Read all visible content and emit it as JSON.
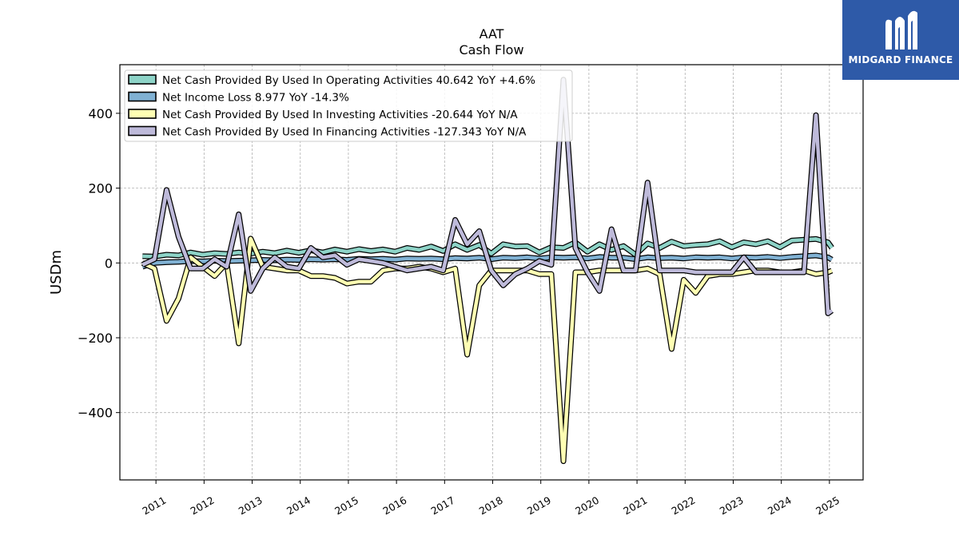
{
  "brand": {
    "name": "MIDGARD FINANCE",
    "logo_icon": "midgard-m-icon",
    "background": "#2e5aa8"
  },
  "chart_data": {
    "type": "line",
    "title": "AAT",
    "subtitle": "Cash Flow",
    "ylabel": "USDm",
    "xlabel": "",
    "ylim": [
      -580,
      530
    ],
    "xlim": [
      2010.25,
      2025.7
    ],
    "yticks": [
      400,
      200,
      0,
      -200,
      -400
    ],
    "ytick_labels": [
      "400",
      "200",
      "0",
      "−200",
      "−400"
    ],
    "xticks": [
      2011,
      2012,
      2013,
      2014,
      2015,
      2016,
      2017,
      2018,
      2019,
      2020,
      2021,
      2022,
      2023,
      2024,
      2025
    ],
    "xtick_labels": [
      "2011",
      "2012",
      "2013",
      "2014",
      "2015",
      "2016",
      "2017",
      "2018",
      "2019",
      "2020",
      "2021",
      "2022",
      "2023",
      "2024",
      "2025"
    ],
    "grid": true,
    "legend_position": "top-left",
    "series": [
      {
        "name": "Net Cash Provided By Used In Operating Activities  40.642 YoY +4.6%",
        "color": "#8dd3c7",
        "x": [
          2010.72,
          2010.97,
          2011.22,
          2011.47,
          2011.72,
          2011.97,
          2012.22,
          2012.47,
          2012.72,
          2012.97,
          2013.22,
          2013.47,
          2013.72,
          2013.97,
          2014.22,
          2014.47,
          2014.72,
          2014.97,
          2015.22,
          2015.47,
          2015.72,
          2015.97,
          2016.22,
          2016.47,
          2016.72,
          2016.97,
          2017.22,
          2017.47,
          2017.72,
          2017.97,
          2018.22,
          2018.47,
          2018.72,
          2018.97,
          2019.22,
          2019.47,
          2019.72,
          2019.97,
          2020.22,
          2020.47,
          2020.72,
          2020.97,
          2021.22,
          2021.47,
          2021.72,
          2021.97,
          2022.22,
          2022.47,
          2022.72,
          2022.97,
          2023.22,
          2023.47,
          2023.72,
          2023.97,
          2024.22,
          2024.47,
          2024.72,
          2024.97,
          2025.05
        ],
        "values": [
          18,
          17,
          22,
          20,
          28,
          22,
          26,
          24,
          28,
          25,
          30,
          26,
          33,
          27,
          34,
          28,
          36,
          30,
          37,
          32,
          36,
          30,
          40,
          35,
          44,
          32,
          50,
          35,
          48,
          25,
          50,
          44,
          45,
          28,
          42,
          40,
          55,
          30,
          50,
          35,
          45,
          22,
          52,
          40,
          57,
          45,
          48,
          50,
          58,
          42,
          55,
          50,
          58,
          42,
          60,
          62,
          64,
          55,
          40.6
        ]
      },
      {
        "name": "Net Income Loss  8.977 YoY -14.3%",
        "color": "#80b1d3",
        "x": [
          2010.72,
          2010.97,
          2011.22,
          2011.47,
          2011.72,
          2011.97,
          2012.22,
          2012.47,
          2012.72,
          2012.97,
          2013.22,
          2013.47,
          2013.72,
          2013.97,
          2014.22,
          2014.47,
          2014.72,
          2014.97,
          2015.22,
          2015.47,
          2015.72,
          2015.97,
          2016.22,
          2016.47,
          2016.72,
          2016.97,
          2017.22,
          2017.47,
          2017.72,
          2017.97,
          2018.22,
          2018.47,
          2018.72,
          2018.97,
          2019.22,
          2019.47,
          2019.72,
          2019.97,
          2020.22,
          2020.47,
          2020.72,
          2020.97,
          2021.22,
          2021.47,
          2021.72,
          2021.97,
          2022.22,
          2022.47,
          2022.72,
          2022.97,
          2023.22,
          2023.47,
          2023.72,
          2023.97,
          2024.22,
          2024.47,
          2024.72,
          2024.97,
          2025.05
        ],
        "values": [
          -10,
          0,
          2,
          3,
          5,
          4,
          6,
          5,
          6,
          7,
          8,
          7,
          9,
          8,
          10,
          9,
          10,
          8,
          11,
          10,
          11,
          9,
          12,
          11,
          12,
          10,
          13,
          12,
          14,
          10,
          14,
          13,
          15,
          12,
          15,
          14,
          15,
          12,
          16,
          14,
          14,
          10,
          15,
          13,
          14,
          12,
          15,
          14,
          15,
          12,
          15,
          14,
          16,
          13,
          16,
          18,
          20,
          15,
          9
        ]
      },
      {
        "name": "Net Cash Provided By Used In Investing Activities  -20.644 YoY N/A",
        "color": "#ffffb3",
        "x": [
          2010.72,
          2010.97,
          2011.22,
          2011.47,
          2011.72,
          2011.97,
          2012.22,
          2012.47,
          2012.72,
          2012.97,
          2013.22,
          2013.47,
          2013.72,
          2013.97,
          2014.22,
          2014.47,
          2014.72,
          2014.97,
          2015.22,
          2015.47,
          2015.72,
          2015.97,
          2016.22,
          2016.47,
          2016.72,
          2016.97,
          2017.22,
          2017.47,
          2017.72,
          2017.97,
          2018.22,
          2018.47,
          2018.72,
          2018.97,
          2019.22,
          2019.47,
          2019.72,
          2019.97,
          2020.22,
          2020.47,
          2020.72,
          2020.97,
          2021.22,
          2021.47,
          2021.72,
          2021.97,
          2022.22,
          2022.47,
          2022.72,
          2022.97,
          2023.22,
          2023.47,
          2023.72,
          2023.97,
          2024.22,
          2024.47,
          2024.72,
          2024.97,
          2025.05
        ],
        "values": [
          0,
          -15,
          -155,
          -95,
          15,
          -10,
          -35,
          0,
          -215,
          65,
          -10,
          -15,
          -20,
          -20,
          -35,
          -35,
          -40,
          -55,
          -50,
          -50,
          -20,
          -15,
          -15,
          -10,
          -15,
          -25,
          -15,
          -245,
          -60,
          -20,
          -20,
          -20,
          -20,
          -30,
          -30,
          -530,
          -25,
          -25,
          -20,
          -20,
          -20,
          -20,
          -15,
          -30,
          -230,
          -45,
          -80,
          -35,
          -30,
          -30,
          -25,
          -20,
          -20,
          -25,
          -25,
          -20,
          -30,
          -25,
          -20.6
        ]
      },
      {
        "name": "Net Cash Provided By Used In Financing Activities  -127.343 YoY N/A",
        "color": "#bebada",
        "x": [
          2010.72,
          2010.97,
          2011.22,
          2011.47,
          2011.72,
          2011.97,
          2012.22,
          2012.47,
          2012.72,
          2012.97,
          2013.22,
          2013.47,
          2013.72,
          2013.97,
          2014.22,
          2014.47,
          2014.72,
          2014.97,
          2015.22,
          2015.47,
          2015.72,
          2015.97,
          2016.22,
          2016.47,
          2016.72,
          2016.97,
          2017.22,
          2017.47,
          2017.72,
          2017.97,
          2018.22,
          2018.47,
          2018.72,
          2018.97,
          2019.22,
          2019.47,
          2019.72,
          2019.97,
          2020.22,
          2020.47,
          2020.72,
          2020.97,
          2021.22,
          2021.47,
          2021.72,
          2021.97,
          2022.22,
          2022.47,
          2022.72,
          2022.97,
          2023.22,
          2023.47,
          2023.72,
          2023.97,
          2024.22,
          2024.47,
          2024.72,
          2024.97,
          2025.05
        ],
        "values": [
          -5,
          10,
          195,
          70,
          -15,
          -15,
          10,
          -10,
          130,
          -75,
          -15,
          15,
          -10,
          -15,
          40,
          15,
          20,
          -5,
          10,
          5,
          0,
          -10,
          -20,
          -15,
          -10,
          -20,
          115,
          50,
          85,
          -20,
          -60,
          -30,
          -15,
          5,
          -5,
          490,
          40,
          -25,
          -75,
          90,
          -20,
          -20,
          215,
          -20,
          -20,
          -20,
          -25,
          -25,
          -25,
          -25,
          15,
          -25,
          -25,
          -25,
          -25,
          -25,
          395,
          -135,
          -127.3
        ]
      }
    ]
  }
}
